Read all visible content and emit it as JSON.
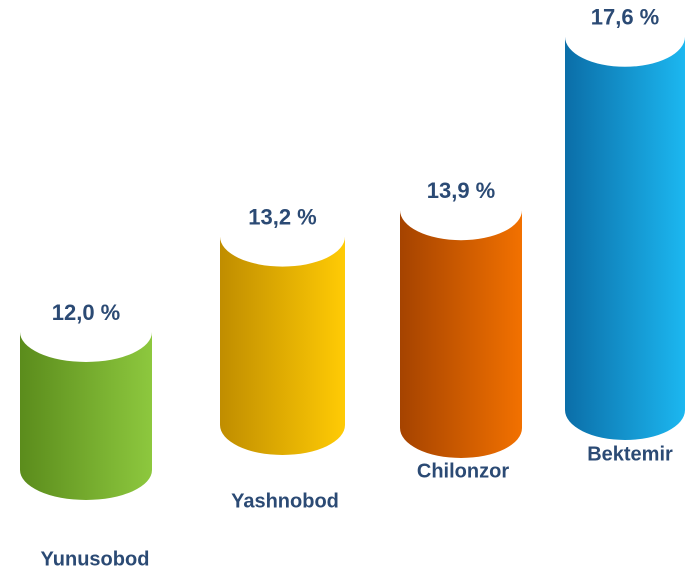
{
  "chart_data": {
    "type": "bar",
    "categories": [
      "Yunusobod",
      "Yashnobod",
      "Chilonzor",
      "Bektemir"
    ],
    "values": [
      12.0,
      13.2,
      13.9,
      17.6
    ],
    "value_labels": [
      "12,0 %",
      "13,2 %",
      "13,9 %",
      "17,6 %"
    ],
    "colors": [
      [
        "#5b8c1c",
        "#8dc83e"
      ],
      [
        "#c08d00",
        "#ffcb05"
      ],
      [
        "#a54300",
        "#f27100"
      ],
      [
        "#0b6ea8",
        "#1cb7f0"
      ]
    ]
  }
}
